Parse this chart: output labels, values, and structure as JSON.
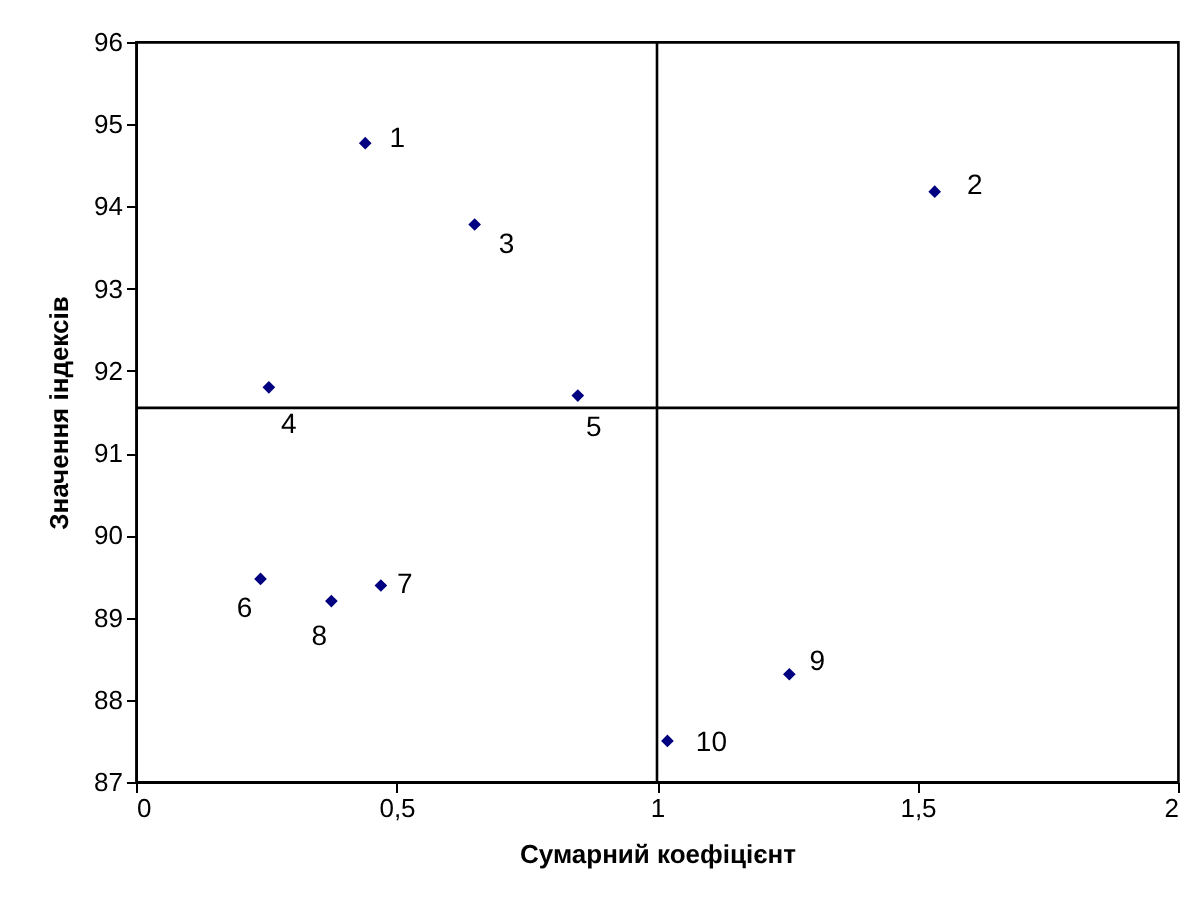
{
  "chart_data": {
    "type": "scatter",
    "xlabel": "Сумарний коефіцієнт",
    "ylabel": "Значення індексів",
    "x": [
      0.44,
      1.533,
      0.65,
      0.255,
      0.848,
      0.239,
      0.47,
      0.375,
      1.254,
      1.02
    ],
    "series": [
      {
        "color": "#000080",
        "values": [
          94.77,
          94.18,
          93.78,
          91.8,
          91.7,
          89.47,
          89.39,
          89.2,
          88.31,
          87.5
        ]
      }
    ],
    "marker": "diamond",
    "xlim": [
      0,
      2
    ],
    "xticks": [
      0,
      {
        "value": 0.5,
        "label": "0,5"
      },
      1,
      {
        "value": 1.5,
        "label": "1,5"
      },
      2
    ],
    "ylim": [
      87,
      96
    ],
    "yticks": [
      87,
      88,
      89,
      90,
      91,
      92,
      93,
      94,
      95,
      96
    ],
    "grid": false,
    "legend": false,
    "ref_lines": [
      {
        "axis": "x",
        "value": 1,
        "color": "#000000"
      },
      {
        "axis": "y",
        "value": 91.55,
        "color": "#000000"
      }
    ],
    "annotations": [
      {
        "text": "1",
        "x": 0.44,
        "y": 94.77
      },
      {
        "text": "2",
        "x": 1.533,
        "y": 94.18
      },
      {
        "text": "3",
        "x": 0.65,
        "y": 93.78
      },
      {
        "text": "4",
        "x": 0.255,
        "y": 91.8
      },
      {
        "text": "5",
        "x": 0.848,
        "y": 91.7
      },
      {
        "text": "6",
        "x": 0.239,
        "y": 89.47
      },
      {
        "text": "7",
        "x": 0.47,
        "y": 89.39
      },
      {
        "text": "8",
        "x": 0.375,
        "y": 89.2
      },
      {
        "text": "9",
        "x": 1.254,
        "y": 88.31
      },
      {
        "text": "10",
        "x": 1.02,
        "y": 87.5
      }
    ]
  }
}
